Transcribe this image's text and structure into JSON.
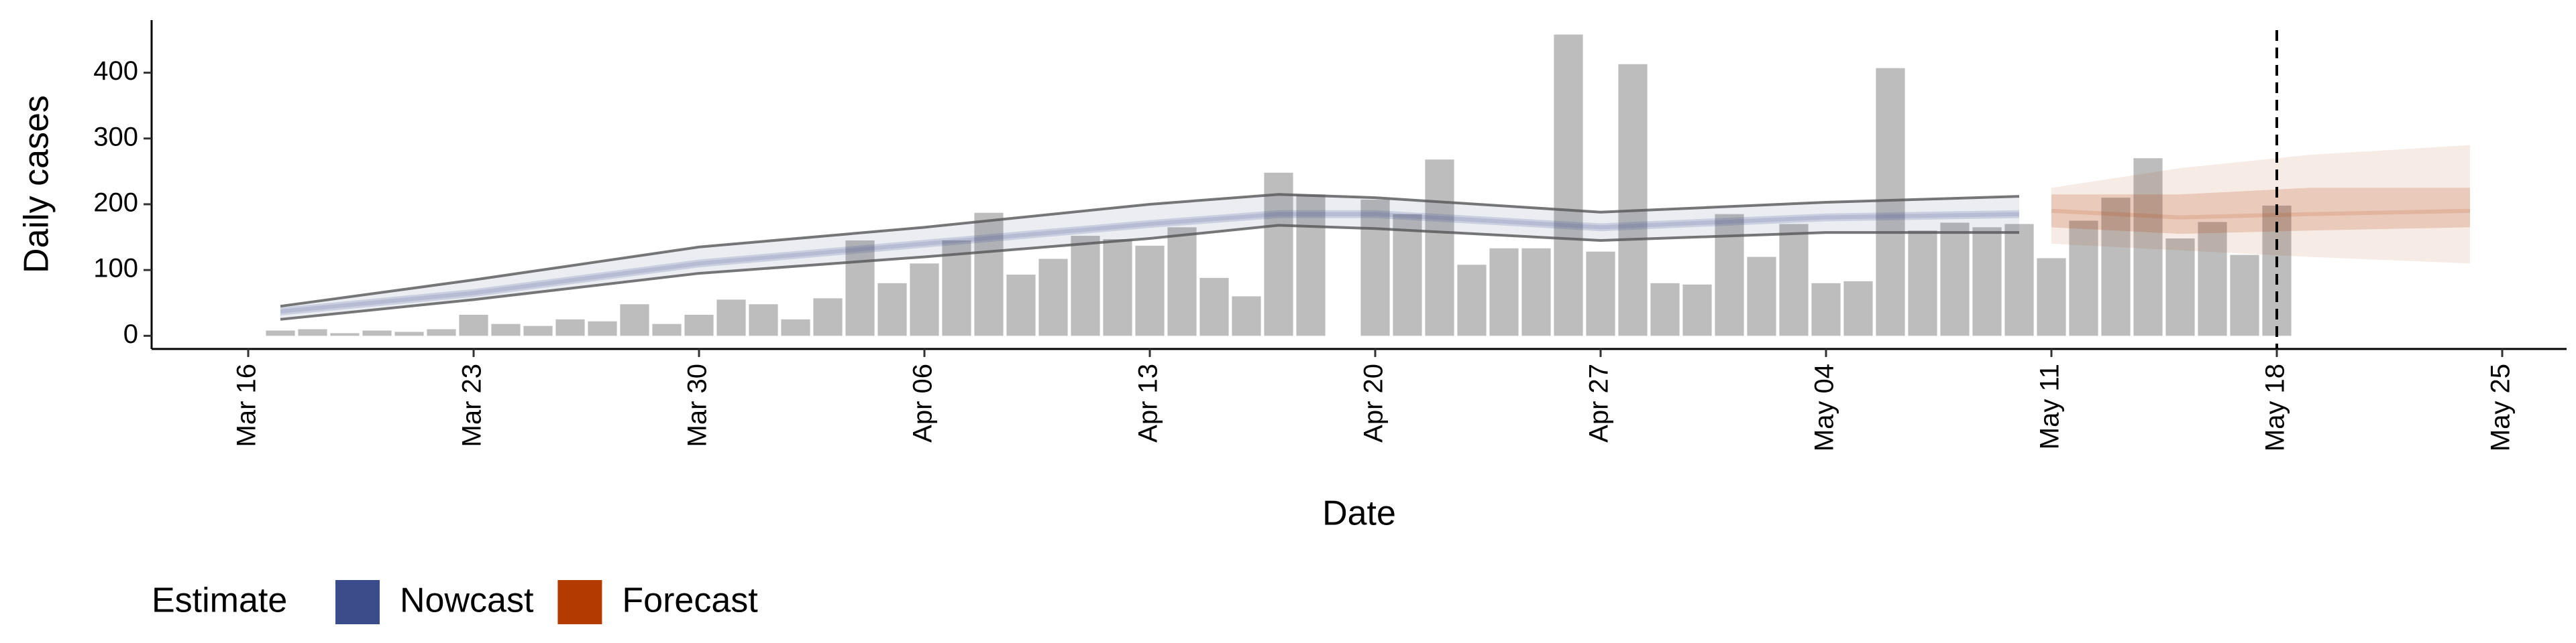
{
  "chart_data": {
    "type": "bar",
    "x_label": "Date",
    "y_label": "Daily cases",
    "xlim": [
      -3,
      72
    ],
    "ylim": [
      -20,
      480
    ],
    "xticks": [
      {
        "value": 0,
        "label": "Mar 16"
      },
      {
        "value": 7,
        "label": "Mar 23"
      },
      {
        "value": 14,
        "label": "Mar 30"
      },
      {
        "value": 21,
        "label": "Apr 06"
      },
      {
        "value": 28,
        "label": "Apr 13"
      },
      {
        "value": 35,
        "label": "Apr 20"
      },
      {
        "value": 42,
        "label": "Apr 27"
      },
      {
        "value": 49,
        "label": "May 04"
      },
      {
        "value": 56,
        "label": "May 11"
      },
      {
        "value": 63,
        "label": "May 18"
      },
      {
        "value": 70,
        "label": "May 25"
      }
    ],
    "yticks": [
      0,
      100,
      200,
      300,
      400
    ],
    "bar_color": "#bdbdbd",
    "x": [
      1,
      2,
      3,
      4,
      5,
      6,
      7,
      8,
      9,
      10,
      11,
      12,
      13,
      14,
      15,
      16,
      17,
      18,
      19,
      20,
      21,
      22,
      23,
      24,
      25,
      26,
      27,
      28,
      29,
      30,
      31,
      32,
      33,
      34,
      35,
      36,
      37,
      38,
      39,
      40,
      41,
      42,
      43,
      44,
      45,
      46,
      47,
      48,
      49,
      50,
      51,
      52,
      53,
      54,
      55,
      56,
      57,
      58,
      59,
      60,
      61,
      62,
      63
    ],
    "values": [
      8,
      10,
      4,
      8,
      6,
      10,
      32,
      18,
      15,
      25,
      22,
      48,
      18,
      32,
      55,
      48,
      25,
      57,
      145,
      80,
      110,
      145,
      187,
      93,
      117,
      152,
      147,
      137,
      165,
      88,
      60,
      248,
      215,
      null,
      207,
      185,
      268,
      108,
      133,
      133,
      458,
      128,
      413,
      80,
      78,
      185,
      120,
      170,
      80,
      83,
      407,
      160,
      172,
      165,
      170,
      118,
      175,
      210,
      270,
      148,
      173,
      123,
      198
    ],
    "vline": 63,
    "legend_title": "Estimate",
    "nowcast": {
      "name": "Nowcast",
      "color": "#3a4d8a",
      "x": [
        1,
        7,
        14,
        21,
        28,
        32,
        35,
        42,
        49,
        55
      ],
      "median": [
        37,
        65,
        110,
        140,
        170,
        185,
        185,
        165,
        180,
        185
      ],
      "lower": [
        25,
        55,
        95,
        120,
        148,
        168,
        163,
        145,
        157,
        157
      ],
      "upper": [
        45,
        85,
        135,
        165,
        200,
        215,
        210,
        188,
        203,
        212
      ],
      "inner_lower": [
        31,
        59,
        104,
        134,
        164,
        179,
        179,
        159,
        174,
        179
      ],
      "inner_upper": [
        43,
        71,
        116,
        146,
        176,
        191,
        191,
        171,
        186,
        191
      ]
    },
    "forecast": {
      "name": "Forecast",
      "color": "#b33a00",
      "x": [
        56,
        60,
        64,
        69
      ],
      "median": [
        190,
        180,
        185,
        190
      ],
      "lower": [
        140,
        130,
        120,
        110
      ],
      "upper": [
        225,
        255,
        275,
        290
      ],
      "inner_lower": [
        165,
        155,
        160,
        165
      ],
      "inner_upper": [
        215,
        215,
        225,
        225
      ]
    }
  }
}
